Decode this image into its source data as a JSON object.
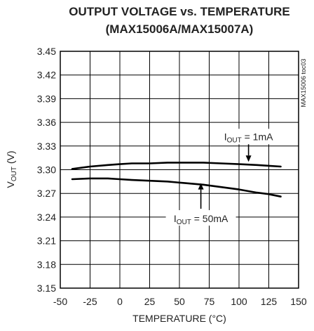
{
  "chart_data": {
    "type": "line",
    "title": "OUTPUT VOLTAGE vs. TEMPERATURE",
    "subtitle": "(MAX15006A/MAX15007A)",
    "xlabel": "TEMPERATURE (°C)",
    "ylabel": {
      "main": "V",
      "sub": "OUT",
      "unit": " (V)"
    },
    "side_label": "MAX15006 toc03",
    "xlim": [
      -50,
      150
    ],
    "ylim": [
      3.15,
      3.45
    ],
    "x_ticks": [
      "-50",
      "-25",
      "0",
      "25",
      "50",
      "75",
      "100",
      "125",
      "150"
    ],
    "y_ticks": [
      "3.45",
      "3.42",
      "3.39",
      "3.36",
      "3.33",
      "3.30",
      "3.27",
      "3.24",
      "3.21",
      "3.18",
      "3.15"
    ],
    "grid": true,
    "series": [
      {
        "x": [
          -40,
          -25,
          -10,
          0,
          10,
          25,
          40,
          55,
          70,
          85,
          100,
          115,
          125,
          135
        ],
        "y": [
          3.301,
          3.304,
          3.306,
          3.307,
          3.308,
          3.308,
          3.309,
          3.309,
          3.309,
          3.308,
          3.307,
          3.306,
          3.305,
          3.304
        ]
      },
      {
        "x": [
          -40,
          -25,
          -10,
          0,
          10,
          25,
          40,
          55,
          70,
          85,
          100,
          115,
          125,
          135
        ],
        "y": [
          3.288,
          3.289,
          3.289,
          3.288,
          3.287,
          3.286,
          3.285,
          3.283,
          3.281,
          3.278,
          3.275,
          3.271,
          3.269,
          3.266
        ]
      }
    ],
    "annotations": [
      {
        "pre": "I",
        "sub": "OUT",
        "post": " = 1mA",
        "from_x": 108,
        "from_y": 3.334,
        "to_x": 108,
        "to_y": 3.31
      },
      {
        "pre": "I",
        "sub": "OUT",
        "post": " = 50mA",
        "from_x": 68,
        "from_y": 3.247,
        "to_x": 68,
        "to_y": 3.283
      }
    ]
  }
}
